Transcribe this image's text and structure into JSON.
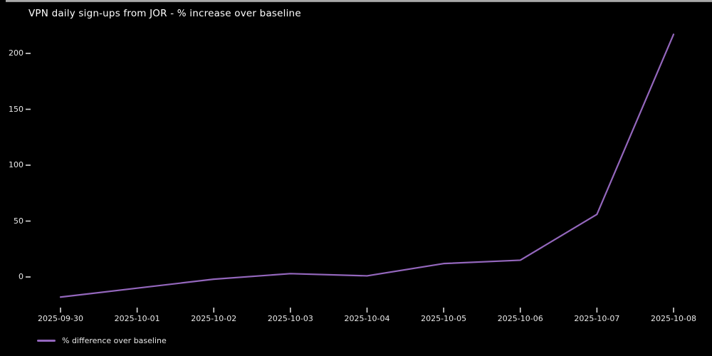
{
  "window": {
    "background": "#000000",
    "top_edge_color": "#8f8f8f"
  },
  "chart_data": {
    "type": "line",
    "title": "VPN daily sign-ups from JOR - % increase over baseline",
    "x": [
      "2025-09-30",
      "2025-10-01",
      "2025-10-02",
      "2025-10-03",
      "2025-10-04",
      "2025-10-05",
      "2025-10-06",
      "2025-10-07",
      "2025-10-08"
    ],
    "series": [
      {
        "name": "% difference over baseline",
        "values": [
          -18,
          -10,
          -2,
          3,
          1,
          12,
          15,
          56,
          217
        ],
        "color": "#9467bd"
      }
    ],
    "xlabel": "",
    "ylabel": "",
    "yticks": [
      0,
      50,
      100,
      150,
      200
    ],
    "ylim": [
      -28,
      222
    ],
    "grid": false,
    "legend": "% difference over baseline",
    "legend_position": "lower-left",
    "background": "#000000",
    "text_color": "#e8e8e8",
    "title_color": "#ffffff",
    "tick_color": "#d9d9d9"
  }
}
